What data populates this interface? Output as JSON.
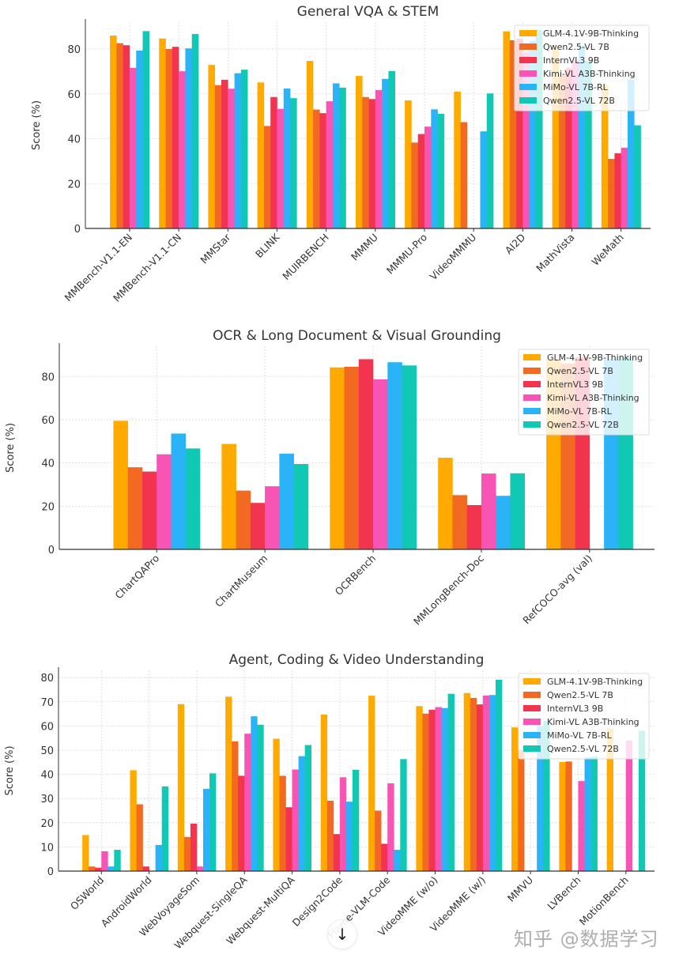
{
  "legend_labels": [
    "GLM-4.1V-9B-Thinking",
    "Qwen2.5-VL 7B",
    "InternVL3 9B",
    "Kimi-VL A3B-Thinking",
    "MiMo-VL 7B-RL",
    "Qwen2.5-VL 72B"
  ],
  "colors": [
    "#ffaa00",
    "#f26a22",
    "#f2344f",
    "#f754b5",
    "#2ab4f7",
    "#10c8b4"
  ],
  "chart_data": [
    {
      "type": "bar",
      "title": "General VQA & STEM",
      "xlabel": "",
      "ylabel": "Score (%)",
      "ylim": [
        0,
        92
      ],
      "yticks": [
        0,
        20,
        40,
        60,
        80
      ],
      "grid": true,
      "legend_position": "top-right",
      "categories": [
        "MMBench-V1.1-EN",
        "MMBench-V1.1-CN",
        "MMStar",
        "BLINK",
        "MUIRBENCH",
        "MMMU",
        "MMMU-Pro",
        "VideoMMMU",
        "AI2D",
        "MathVista",
        "WeMath"
      ],
      "series": [
        {
          "name": "GLM-4.1V-9B-Thinking",
          "values": [
            86.0,
            84.7,
            72.9,
            65.1,
            74.7,
            68.0,
            57.1,
            61.0,
            87.9,
            80.7,
            63.8
          ]
        },
        {
          "name": "Qwen2.5-VL 7B",
          "values": [
            82.6,
            80.0,
            63.9,
            45.7,
            53.0,
            58.6,
            38.3,
            47.4,
            83.9,
            68.2,
            31.0
          ]
        },
        {
          "name": "InternVL3 9B",
          "values": [
            81.7,
            81.0,
            66.3,
            58.6,
            51.4,
            57.7,
            42.1,
            null,
            84.6,
            71.5,
            33.5
          ]
        },
        {
          "name": "Kimi-VL A3B-Thinking",
          "values": [
            71.6,
            70.1,
            62.3,
            53.3,
            56.7,
            61.7,
            45.4,
            null,
            78.6,
            74.9,
            36.0
          ]
        },
        {
          "name": "MiMo-VL 7B-RL",
          "values": [
            79.3,
            80.3,
            69.2,
            62.4,
            64.7,
            66.7,
            53.1,
            43.3,
            83.5,
            81.5,
            66.3
          ]
        },
        {
          "name": "Qwen2.5-VL 72B",
          "values": [
            88.0,
            86.7,
            70.8,
            58.1,
            62.8,
            70.2,
            51.1,
            60.2,
            88.5,
            74.8,
            46.0
          ]
        }
      ]
    },
    {
      "type": "bar",
      "title": "OCR & Long Document & Visual Grounding",
      "xlabel": "",
      "ylabel": "Score (%)",
      "ylim": [
        0,
        94
      ],
      "yticks": [
        0,
        20,
        40,
        60,
        80
      ],
      "grid": true,
      "legend_position": "top-right",
      "categories": [
        "ChartQAPro",
        "ChartMuseum",
        "OCRBench",
        "MMLongBench-Doc",
        "RefCOCO-avg (val)"
      ],
      "series": [
        {
          "name": "GLM-4.1V-9B-Thinking",
          "values": [
            59.5,
            48.8,
            84.2,
            42.4,
            87.9
          ]
        },
        {
          "name": "Qwen2.5-VL 7B",
          "values": [
            38.0,
            27.2,
            84.5,
            25.1,
            86.0
          ]
        },
        {
          "name": "InternVL3 9B",
          "values": [
            36.0,
            21.5,
            88.0,
            20.5,
            89.0
          ]
        },
        {
          "name": "Kimi-VL A3B-Thinking",
          "values": [
            44.0,
            29.2,
            78.7,
            35.1,
            null
          ]
        },
        {
          "name": "MiMo-VL 7B-RL",
          "values": [
            53.6,
            44.3,
            86.6,
            24.8,
            88.0
          ]
        },
        {
          "name": "Qwen2.5-VL 72B",
          "values": [
            46.7,
            39.5,
            85.1,
            35.2,
            89.0
          ]
        }
      ]
    },
    {
      "type": "bar",
      "title": "Agent, Coding & Video Understanding",
      "xlabel": "",
      "ylabel": "Score (%)",
      "ylim": [
        0,
        83
      ],
      "yticks": [
        0,
        10,
        20,
        30,
        40,
        50,
        60,
        70,
        80
      ],
      "grid": true,
      "legend_position": "top-right",
      "categories": [
        "OSWorld",
        "AndroidWorld",
        "WebVoyageSom",
        "Webquest-SingleQA",
        "Webquest-MultiQA",
        "Design2Code",
        "Flame-VLM-Code",
        "VideoMME (w/o)",
        "VideoMME (w/)",
        "MMVU",
        "LVBench",
        "MotionBench"
      ],
      "series": [
        {
          "name": "GLM-4.1V-9B-Thinking",
          "values": [
            14.9,
            41.7,
            69.0,
            72.1,
            54.7,
            64.7,
            72.5,
            68.2,
            73.6,
            59.4,
            45.1,
            59.0
          ]
        },
        {
          "name": "Qwen2.5-VL 7B",
          "values": [
            1.9,
            27.6,
            14.1,
            53.6,
            39.4,
            29.1,
            25.0,
            65.1,
            71.6,
            50.1,
            45.3,
            null
          ]
        },
        {
          "name": "InternVL3 9B",
          "values": [
            1.4,
            1.9,
            19.6,
            39.4,
            26.4,
            15.3,
            11.3,
            66.7,
            68.9,
            null,
            null,
            null
          ]
        },
        {
          "name": "Kimi-VL A3B-Thinking",
          "values": [
            8.2,
            null,
            1.9,
            56.8,
            42.0,
            38.8,
            36.3,
            67.8,
            72.6,
            null,
            37.2,
            54.0
          ]
        },
        {
          "name": "MiMo-VL 7B-RL",
          "values": [
            1.9,
            10.8,
            34.0,
            64.0,
            47.5,
            28.7,
            8.8,
            67.4,
            72.8,
            60.0,
            47.0,
            null
          ]
        },
        {
          "name": "Qwen2.5-VL 72B",
          "values": [
            8.8,
            35.0,
            40.4,
            60.5,
            52.1,
            41.9,
            46.3,
            73.3,
            79.1,
            62.0,
            47.3,
            58.0
          ]
        }
      ]
    }
  ],
  "watermark": "知乎 @数据学习",
  "scroll_button": {
    "icon": "arrow-down-icon",
    "glyph": "↓"
  }
}
